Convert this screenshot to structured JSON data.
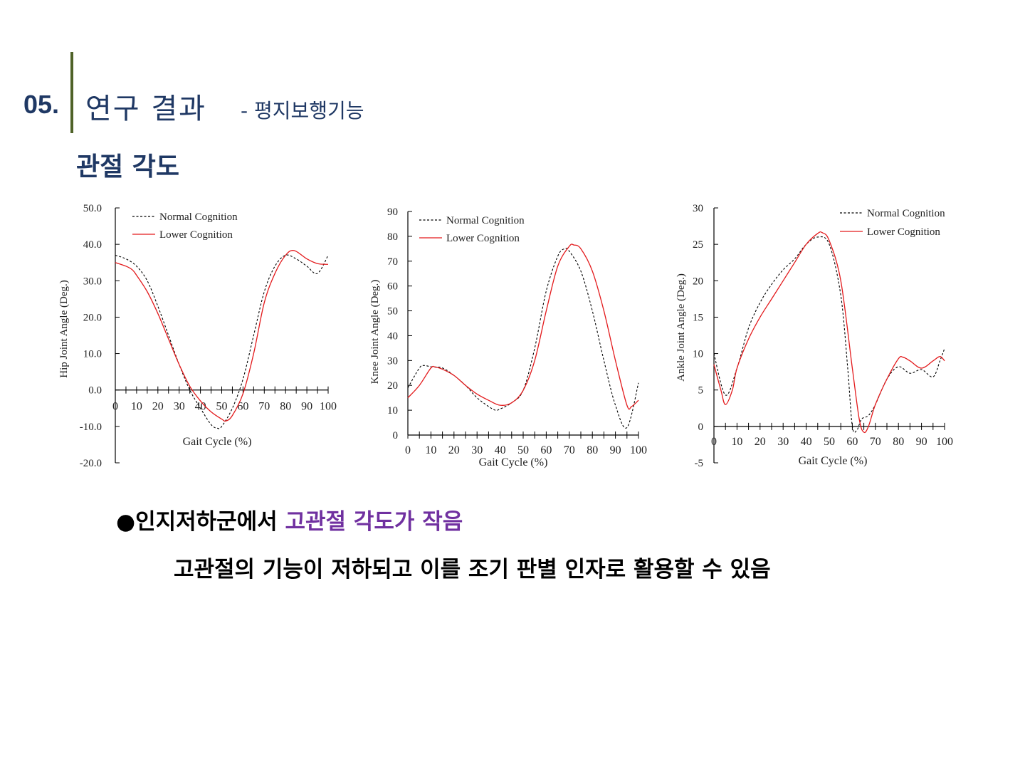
{
  "slide": {
    "number": "05.",
    "title": "연구 결과",
    "subtitle": "- 평지보행기능",
    "section": "관절 각도",
    "bullet_prefix": "●",
    "bullet_text": "인지저하군에서 ",
    "bullet_highlight": "고관절 각도가 작음",
    "conclusion": "고관절의 기능이 저하되고 이를 조기 판별 인자로 활용할 수 있음",
    "colors": {
      "title": "#1f3864",
      "accent_bar": "#4f6228",
      "highlight": "#7030a0"
    }
  },
  "chart_data": [
    {
      "type": "line",
      "xlabel": "Gait Cycle (%)",
      "ylabel": "Hip Joint Angle (Deg.)",
      "xlim": [
        0,
        100
      ],
      "ylim": [
        -20,
        50
      ],
      "xticks": [
        "0",
        "10",
        "20",
        "30",
        "40",
        "50",
        "60",
        "70",
        "80",
        "90",
        "100"
      ],
      "yticks": [
        "50.0",
        "40.0",
        "30.0",
        "20.0",
        "10.0",
        "0.0",
        "-10.0",
        "-20.0"
      ],
      "legend_placement": "top-left",
      "series": [
        {
          "name": "Normal Cognition",
          "style": "dashed",
          "color": "#000000",
          "x": [
            0,
            5,
            10,
            15,
            20,
            25,
            30,
            35,
            40,
            45,
            48,
            50,
            55,
            60,
            65,
            70,
            75,
            80,
            85,
            90,
            95,
            100
          ],
          "y": [
            37,
            36,
            34,
            30,
            23,
            15,
            7,
            0,
            -5,
            -9.5,
            -10.5,
            -10,
            -5,
            3,
            15,
            27,
            34,
            37,
            36,
            34,
            32,
            37
          ]
        },
        {
          "name": "Lower Cognition",
          "style": "solid",
          "color": "#e31a1c",
          "x": [
            0,
            5,
            8,
            10,
            15,
            20,
            25,
            30,
            35,
            40,
            45,
            50,
            52,
            55,
            60,
            65,
            70,
            75,
            80,
            84,
            90,
            95,
            100
          ],
          "y": [
            35,
            34,
            33,
            31.5,
            27,
            21,
            14,
            7,
            1,
            -3,
            -6,
            -8,
            -8.5,
            -7,
            -1,
            10,
            24,
            32,
            37,
            38.3,
            36,
            34.7,
            34.5
          ]
        }
      ]
    },
    {
      "type": "line",
      "xlabel": "Gait Cycle (%)",
      "ylabel": "Knee Joint Angle (Deg.)",
      "xlim": [
        0,
        100
      ],
      "ylim": [
        0,
        90
      ],
      "xticks": [
        "0",
        "10",
        "20",
        "30",
        "40",
        "50",
        "60",
        "70",
        "80",
        "90",
        "100"
      ],
      "yticks": [
        "90",
        "80",
        "70",
        "60",
        "50",
        "40",
        "30",
        "20",
        "10",
        "0"
      ],
      "legend_placement": "top-left",
      "series": [
        {
          "name": "Normal Cognition",
          "style": "dashed",
          "color": "#000000",
          "x": [
            0,
            5,
            7,
            10,
            15,
            20,
            25,
            30,
            35,
            38,
            40,
            45,
            50,
            55,
            60,
            65,
            68,
            70,
            75,
            80,
            85,
            90,
            95,
            100
          ],
          "y": [
            19,
            27,
            28,
            27.5,
            27,
            24,
            20,
            15,
            11.5,
            10,
            10.5,
            13,
            18,
            35,
            58,
            72,
            75,
            74,
            66,
            50,
            30,
            12,
            3,
            21
          ]
        },
        {
          "name": "Lower Cognition",
          "style": "solid",
          "color": "#e31a1c",
          "x": [
            0,
            5,
            10,
            12,
            15,
            20,
            25,
            30,
            35,
            40,
            45,
            50,
            55,
            60,
            65,
            70,
            72,
            75,
            80,
            85,
            90,
            95,
            97,
            100
          ],
          "y": [
            15,
            20,
            27,
            27.3,
            26.5,
            24,
            20,
            16.5,
            14,
            12,
            13,
            18,
            30,
            50,
            68,
            76,
            76.5,
            75,
            66,
            50,
            30,
            12,
            11.5,
            14
          ]
        }
      ]
    },
    {
      "type": "line",
      "xlabel": "Gait Cycle (%)",
      "ylabel": "Ankle Joint Angle (Deg.)",
      "xlim": [
        0,
        100
      ],
      "ylim": [
        -5,
        30
      ],
      "xticks": [
        "0",
        "10",
        "20",
        "30",
        "40",
        "50",
        "60",
        "70",
        "80",
        "90",
        "100"
      ],
      "yticks": [
        "30",
        "25",
        "20",
        "15",
        "10",
        "5",
        "0",
        "-5"
      ],
      "legend_placement": "top-right",
      "series": [
        {
          "name": "Normal Cognition",
          "style": "dashed",
          "color": "#000000",
          "x": [
            0,
            5,
            10,
            15,
            20,
            25,
            30,
            35,
            40,
            45,
            50,
            55,
            58,
            60,
            62,
            64,
            67,
            70,
            75,
            80,
            85,
            90,
            95,
            98,
            100
          ],
          "y": [
            10,
            4.3,
            8,
            13.5,
            17,
            19.5,
            21.5,
            23,
            25,
            26,
            25,
            18,
            8,
            0,
            -0.5,
            1,
            1.5,
            3,
            6.5,
            8.2,
            7.3,
            7.8,
            6.8,
            9,
            10.7
          ]
        },
        {
          "name": "Lower Cognition",
          "style": "solid",
          "color": "#e31a1c",
          "x": [
            0,
            3,
            5,
            8,
            10,
            15,
            20,
            25,
            30,
            35,
            40,
            45,
            47,
            50,
            55,
            60,
            63,
            65,
            67,
            70,
            75,
            80,
            82,
            85,
            90,
            95,
            98,
            100
          ],
          "y": [
            8.5,
            5,
            3,
            5,
            8,
            12,
            15,
            17.5,
            20,
            22.5,
            25,
            26.5,
            26.6,
            25.5,
            20,
            8,
            1,
            -0.8,
            0,
            3,
            6.5,
            9.3,
            9.5,
            9,
            8,
            9,
            9.6,
            9
          ]
        }
      ]
    }
  ]
}
